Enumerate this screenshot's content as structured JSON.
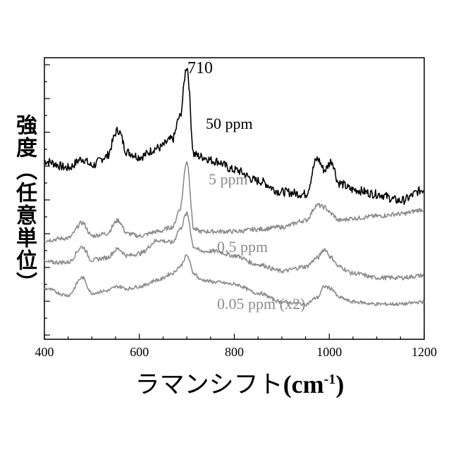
{
  "chart_data": {
    "type": "line",
    "xlabel": "ラマンシフト",
    "xlabel_unit": "(cm",
    "xlabel_exp": "-1",
    "xlabel_close": ")",
    "ylabel": "強度（任意単位）",
    "xlim": [
      400,
      1200
    ],
    "xticks": [
      "400",
      "600",
      "800",
      "1000",
      "1200"
    ],
    "annotation": "710",
    "series": [
      {
        "name": "50 ppm",
        "color": "#000000",
        "offset": 1.2,
        "noise": 0.1,
        "x": [
          400,
          450,
          480,
          500,
          530,
          555,
          575,
          600,
          640,
          670,
          685,
          700,
          715,
          730,
          760,
          800,
          850,
          900,
          950,
          975,
          990,
          1005,
          1020,
          1050,
          1100,
          1150,
          1200
        ],
        "y": [
          1.45,
          1.3,
          1.5,
          1.35,
          1.55,
          2.15,
          1.65,
          1.55,
          1.75,
          1.95,
          2.45,
          3.6,
          1.6,
          1.55,
          1.45,
          1.25,
          1.0,
          0.75,
          0.7,
          1.5,
          1.25,
          1.45,
          0.95,
          0.8,
          0.7,
          0.55,
          0.8
        ]
      },
      {
        "name": "5 ppm",
        "color": "#8c8c8c",
        "offset": 0.85,
        "noise": 0.05,
        "x": [
          400,
          450,
          480,
          500,
          530,
          555,
          575,
          600,
          640,
          670,
          685,
          700,
          715,
          730,
          760,
          800,
          850,
          900,
          950,
          975,
          990,
          1005,
          1020,
          1050,
          1100,
          1150,
          1200
        ],
        "y": [
          0.0,
          0.05,
          0.4,
          0.1,
          0.15,
          0.45,
          0.15,
          0.1,
          0.2,
          0.3,
          0.7,
          1.8,
          0.25,
          0.2,
          0.2,
          0.2,
          0.25,
          0.3,
          0.45,
          0.8,
          0.75,
          0.6,
          0.45,
          0.5,
          0.55,
          0.6,
          0.7
        ]
      },
      {
        "name": "0.5 ppm",
        "color": "#8c8c8c",
        "offset": 0.35,
        "noise": 0.05,
        "x": [
          400,
          450,
          480,
          500,
          530,
          555,
          575,
          600,
          640,
          670,
          685,
          700,
          715,
          730,
          760,
          800,
          850,
          900,
          950,
          975,
          990,
          1005,
          1020,
          1050,
          1100,
          1150,
          1200
        ],
        "y": [
          0.0,
          0.0,
          0.35,
          0.05,
          0.1,
          0.3,
          0.15,
          0.2,
          0.5,
          0.45,
          0.75,
          1.1,
          0.35,
          0.25,
          0.25,
          0.15,
          -0.05,
          -0.2,
          -0.1,
          0.1,
          0.3,
          0.1,
          -0.1,
          -0.25,
          -0.35,
          -0.35,
          -0.3
        ]
      },
      {
        "name": "0.05 ppm (x2)",
        "color": "#8c8c8c",
        "offset": -0.25,
        "noise": 0.04,
        "x": [
          400,
          450,
          480,
          500,
          530,
          555,
          575,
          600,
          640,
          670,
          685,
          700,
          715,
          730,
          760,
          800,
          850,
          900,
          950,
          975,
          990,
          1005,
          1020,
          1050,
          1100,
          1150,
          1200
        ],
        "y": [
          0.0,
          -0.15,
          0.25,
          -0.1,
          -0.05,
          0.05,
          0.0,
          0.05,
          0.2,
          0.35,
          0.5,
          0.75,
          0.35,
          0.2,
          0.15,
          0.1,
          -0.1,
          -0.3,
          -0.35,
          -0.2,
          0.05,
          0.0,
          -0.2,
          -0.3,
          -0.35,
          -0.35,
          -0.3
        ]
      }
    ]
  }
}
